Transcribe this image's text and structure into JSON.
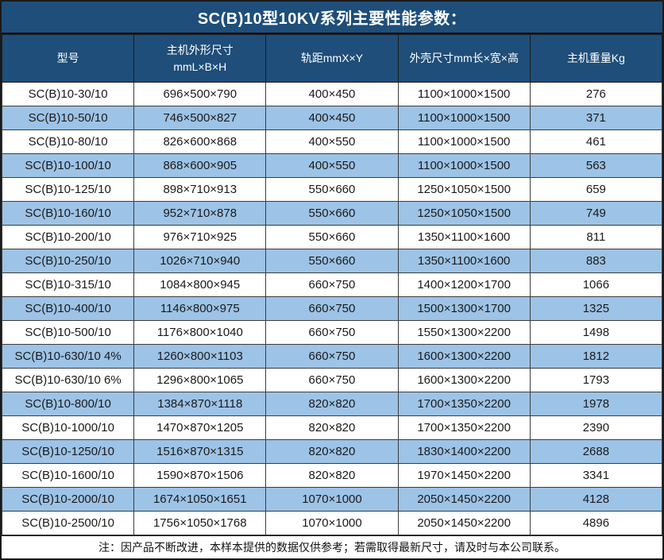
{
  "title": "SC(B)10型10KV系列主要性能参数：",
  "note": "注：因产品不断改进，本样本提供的数据仅供参考；若需取得最新尺寸，请及时与本公司联系。",
  "colors": {
    "header_bg": "#1E4E79",
    "stripe_row_bg": "#9DC3E6",
    "plain_row_bg": "#FFFFFF",
    "header_text": "#FFFFFF",
    "body_text": "#1A1A1A",
    "grid_border": "#3C3C3C"
  },
  "table": {
    "headers": [
      {
        "line1": "型号",
        "line2": ""
      },
      {
        "line1": "主机外形尺寸",
        "line2": "mmL×B×H"
      },
      {
        "line1": "轨距mmX×Y",
        "line2": ""
      },
      {
        "line1": "外壳尺寸mm长×宽×高",
        "line2": ""
      },
      {
        "line1": "主机重量Kg",
        "line2": ""
      }
    ],
    "rows": [
      [
        "SC(B)10-30/10",
        "696×500×790",
        "400×450",
        "1100×1000×1500",
        "276"
      ],
      [
        "SC(B)10-50/10",
        "746×500×827",
        "400×450",
        "1100×1000×1500",
        "371"
      ],
      [
        "SC(B)10-80/10",
        "826×600×868",
        "400×550",
        "1100×1000×1500",
        "461"
      ],
      [
        "SC(B)10-100/10",
        "868×600×905",
        "400×550",
        "1100×1000×1500",
        "563"
      ],
      [
        "SC(B)10-125/10",
        "898×710×913",
        "550×660",
        "1250×1050×1500",
        "659"
      ],
      [
        "SC(B)10-160/10",
        "952×710×878",
        "550×660",
        "1250×1050×1500",
        "749"
      ],
      [
        "SC(B)10-200/10",
        "976×710×925",
        "550×660",
        "1350×1100×1600",
        "811"
      ],
      [
        "SC(B)10-250/10",
        "1026×710×940",
        "550×660",
        "1350×1100×1600",
        "883"
      ],
      [
        "SC(B)10-315/10",
        "1084×800×945",
        "660×750",
        "1400×1200×1700",
        "1066"
      ],
      [
        "SC(B)10-400/10",
        "1146×800×975",
        "660×750",
        "1500×1300×1700",
        "1325"
      ],
      [
        "SC(B)10-500/10",
        "1176×800×1040",
        "660×750",
        "1550×1300×2200",
        "1498"
      ],
      [
        "SC(B)10-630/10 4%",
        "1260×800×1103",
        "660×750",
        "1600×1300×2200",
        "1812"
      ],
      [
        "SC(B)10-630/10 6%",
        "1296×800×1065",
        "660×750",
        "1600×1300×2200",
        "1793"
      ],
      [
        "SC(B)10-800/10",
        "1384×870×1118",
        "820×820",
        "1700×1350×2200",
        "1978"
      ],
      [
        "SC(B)10-1000/10",
        "1470×870×1205",
        "820×820",
        "1700×1350×2200",
        "2390"
      ],
      [
        "SC(B)10-1250/10",
        "1516×870×1315",
        "820×820",
        "1830×1400×2200",
        "2688"
      ],
      [
        "SC(B)10-1600/10",
        "1590×870×1506",
        "820×820",
        "1970×1450×2200",
        "3341"
      ],
      [
        "SC(B)10-2000/10",
        "1674×1050×1651",
        "1070×1000",
        "2050×1450×2200",
        "4128"
      ],
      [
        "SC(B)10-2500/10",
        "1756×1050×1768",
        "1070×1000",
        "2050×1450×2200",
        "4896"
      ]
    ]
  }
}
